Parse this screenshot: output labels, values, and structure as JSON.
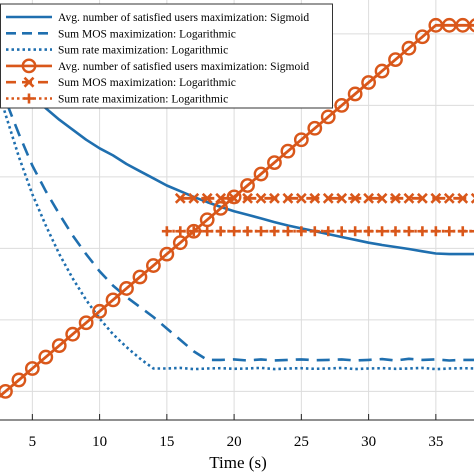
{
  "chart_data": {
    "type": "line",
    "xlabel": "Time (s)",
    "ylabel": "",
    "title": "",
    "xlim": [
      2,
      38
    ],
    "ylim": [
      0,
      14
    ],
    "xticks": [
      5,
      10,
      15,
      20,
      25,
      30,
      35
    ],
    "grid": true,
    "legend_position": "top",
    "colors": {
      "blue": "#1f6faf",
      "orange": "#d9571a",
      "grid": "#dcdcdc"
    },
    "series": [
      {
        "name": "Avg. number of satisfied users maximization: Sigmoid",
        "color": "#1f6faf",
        "style": "solid",
        "marker": "none",
        "x": [
          2,
          3,
          4,
          5,
          6,
          7,
          8,
          9,
          10,
          11,
          12,
          13,
          14,
          15,
          16,
          17,
          18,
          19,
          20,
          21,
          22,
          23,
          24,
          25,
          26,
          27,
          28,
          29,
          30,
          31,
          32,
          33,
          34,
          35,
          36,
          37,
          38
        ],
        "y": [
          13.6,
          12.6,
          11.9,
          11.35,
          10.9,
          10.5,
          10.15,
          9.8,
          9.5,
          9.25,
          8.95,
          8.7,
          8.45,
          8.2,
          8.0,
          7.8,
          7.62,
          7.45,
          7.3,
          7.18,
          7.05,
          6.92,
          6.8,
          6.7,
          6.6,
          6.5,
          6.4,
          6.3,
          6.2,
          6.12,
          6.05,
          5.98,
          5.9,
          5.82,
          5.8,
          5.8,
          5.8
        ]
      },
      {
        "name": "Sum MOS maximization: Logarithmic",
        "color": "#1f6faf",
        "style": "dashed",
        "marker": "none",
        "x": [
          2,
          3,
          4,
          5,
          6,
          7,
          8,
          9,
          10,
          11,
          12,
          13,
          14,
          15,
          16,
          17,
          18,
          19,
          20,
          21,
          22,
          23,
          24,
          25,
          26,
          27,
          28,
          29,
          30,
          31,
          32,
          33,
          34,
          35,
          36,
          37,
          38
        ],
        "y": [
          12.4,
          11.2,
          10.0,
          8.9,
          8.0,
          7.2,
          6.45,
          5.8,
          5.2,
          4.7,
          4.3,
          3.95,
          3.6,
          3.2,
          2.8,
          2.4,
          2.1,
          2.1,
          2.12,
          2.08,
          2.12,
          2.08,
          2.1,
          2.12,
          2.09,
          2.1,
          2.12,
          2.08,
          2.1,
          2.13,
          2.08,
          2.14,
          2.1,
          2.12,
          2.08,
          2.1,
          2.1
        ]
      },
      {
        "name": "Sum rate maximization: Logarithmic",
        "color": "#1f6faf",
        "style": "dotted",
        "marker": "none",
        "x": [
          2,
          3,
          4,
          5,
          6,
          7,
          8,
          9,
          10,
          11,
          12,
          13,
          14,
          15,
          16,
          17,
          18,
          19,
          20,
          21,
          22,
          23,
          24,
          25,
          26,
          27,
          28,
          29,
          30,
          31,
          32,
          33,
          34,
          35,
          36,
          37,
          38
        ],
        "y": [
          12.3,
          10.7,
          9.2,
          7.9,
          6.8,
          5.8,
          4.95,
          4.2,
          3.55,
          3.0,
          2.55,
          2.15,
          1.8,
          1.8,
          1.82,
          1.78,
          1.8,
          1.81,
          1.79,
          1.8,
          1.82,
          1.78,
          1.8,
          1.81,
          1.79,
          1.8,
          1.82,
          1.78,
          1.8,
          1.81,
          1.79,
          1.8,
          1.82,
          1.78,
          1.8,
          1.81,
          1.8
        ]
      },
      {
        "name": "Avg. number of satisfied users maximization: Sigmoid",
        "color": "#d9571a",
        "style": "solid",
        "marker": "circle",
        "x": [
          2,
          3,
          4,
          5,
          6,
          7,
          8,
          9,
          10,
          11,
          12,
          13,
          14,
          15,
          16,
          17,
          18,
          19,
          20,
          21,
          22,
          23,
          24,
          25,
          26,
          27,
          28,
          29,
          30,
          31,
          32,
          33,
          34,
          35,
          36,
          37,
          38
        ],
        "y": [
          0.6,
          1.0,
          1.4,
          1.8,
          2.2,
          2.6,
          3.0,
          3.4,
          3.8,
          4.2,
          4.6,
          5.0,
          5.4,
          5.8,
          6.2,
          6.6,
          7.0,
          7.4,
          7.8,
          8.2,
          8.6,
          9.0,
          9.4,
          9.8,
          10.2,
          10.6,
          11.0,
          11.4,
          11.8,
          12.2,
          12.6,
          13.0,
          13.4,
          13.8,
          13.8,
          13.8,
          13.8
        ]
      },
      {
        "name": "Sum MOS maximization: Logarithmic",
        "color": "#d9571a",
        "style": "dashed",
        "marker": "x",
        "x": [
          16,
          17,
          18,
          19,
          20,
          21,
          22,
          23,
          24,
          25,
          26,
          27,
          28,
          29,
          30,
          31,
          32,
          33,
          34,
          35,
          36,
          37,
          38
        ],
        "y": [
          7.75,
          7.75,
          7.75,
          7.75,
          7.75,
          7.75,
          7.75,
          7.75,
          7.75,
          7.75,
          7.75,
          7.75,
          7.75,
          7.75,
          7.75,
          7.75,
          7.75,
          7.75,
          7.75,
          7.75,
          7.75,
          7.75,
          7.75
        ]
      },
      {
        "name": "Sum rate maximization: Logarithmic",
        "color": "#d9571a",
        "style": "dotted",
        "marker": "plus",
        "x": [
          15,
          16,
          17,
          18,
          19,
          20,
          21,
          22,
          23,
          24,
          25,
          26,
          27,
          28,
          29,
          30,
          31,
          32,
          33,
          34,
          35,
          36,
          37,
          38
        ],
        "y": [
          6.6,
          6.6,
          6.6,
          6.6,
          6.6,
          6.6,
          6.6,
          6.6,
          6.6,
          6.6,
          6.6,
          6.6,
          6.6,
          6.6,
          6.6,
          6.6,
          6.6,
          6.6,
          6.6,
          6.6,
          6.6,
          6.6,
          6.6,
          6.6
        ]
      }
    ]
  }
}
